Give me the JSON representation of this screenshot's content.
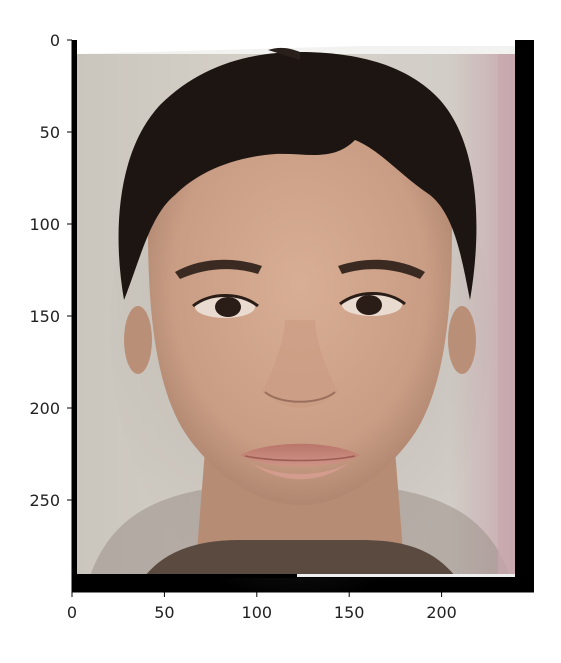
{
  "chart_data": {
    "type": "image",
    "title": "",
    "xlabel": "",
    "ylabel": "",
    "xlim": [
      0,
      250
    ],
    "ylim": [
      300,
      0
    ],
    "x_ticks": [
      0,
      50,
      100,
      150,
      200
    ],
    "y_ticks": [
      0,
      50,
      100,
      150,
      200,
      250
    ],
    "x_tick_labels": [
      "0",
      "50",
      "100",
      "150",
      "200"
    ],
    "y_tick_labels": [
      "0",
      "50",
      "100",
      "150",
      "200",
      "250"
    ],
    "image_extent": {
      "x": [
        0,
        250
      ],
      "y": [
        0,
        300
      ]
    },
    "image_content": "average face photograph",
    "grid": false
  },
  "colors": {
    "background": "#ffffff",
    "axis": "#000000",
    "image_border": "#000000",
    "photo_bg": "#cfc9c1",
    "skin": "#c79c83",
    "hair": "#1c1512",
    "side_tint": "#c8a7ad"
  }
}
